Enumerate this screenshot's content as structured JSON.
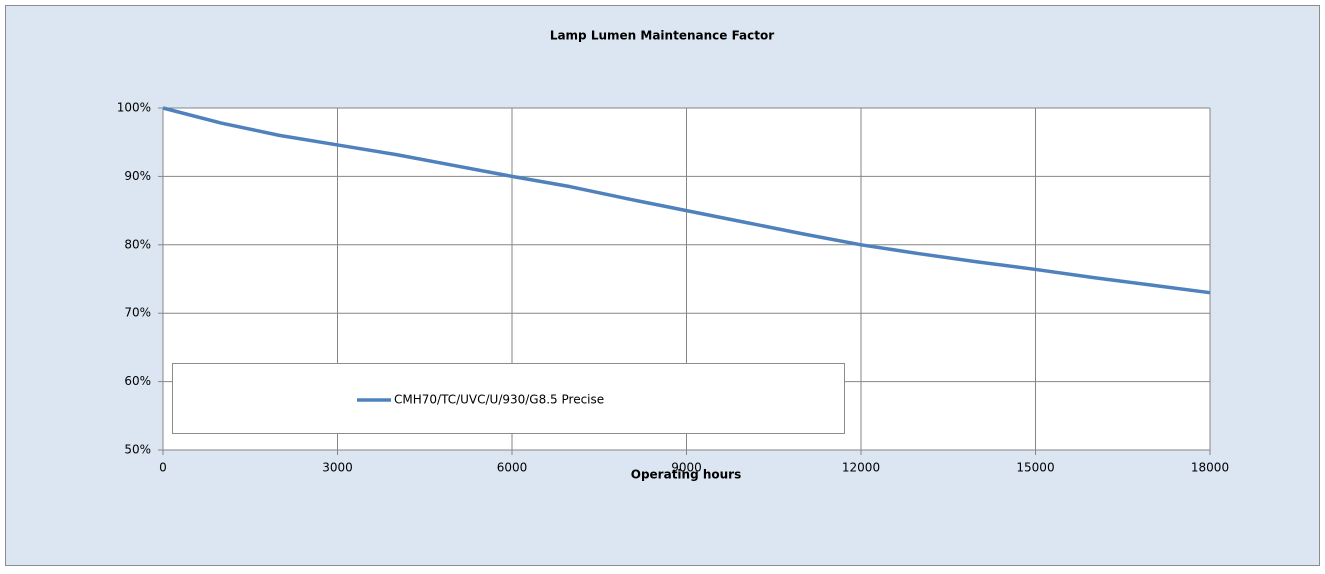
{
  "chart_data": {
    "type": "line",
    "title": "Lamp Lumen Maintenance Factor",
    "x_label": "Operating hours",
    "x": [
      0,
      1000,
      2000,
      3000,
      4000,
      5000,
      6000,
      7000,
      8000,
      9000,
      10000,
      11000,
      12000,
      13000,
      14000,
      15000,
      16000,
      17000,
      18000
    ],
    "series": [
      {
        "name": "CMH70/TC/UVC/U/930/G8.5 Precise",
        "color": "#4f81bd",
        "values": [
          100,
          97.8,
          96,
          94.6,
          93.2,
          91.6,
          90,
          88.5,
          86.7,
          85,
          83.3,
          81.6,
          80,
          78.7,
          77.5,
          76.4,
          75.2,
          74.1,
          73
        ]
      }
    ],
    "xlim": [
      0,
      18000
    ],
    "xticks": [
      0,
      3000,
      6000,
      9000,
      12000,
      15000,
      18000
    ],
    "ylim": [
      50,
      100
    ],
    "yticks": [
      {
        "value": 50,
        "label": "50%"
      },
      {
        "value": 60,
        "label": "60%"
      },
      {
        "value": 70,
        "label": "70%"
      },
      {
        "value": 80,
        "label": "80%"
      },
      {
        "value": 90,
        "label": "90%"
      },
      {
        "value": 100,
        "label": "100%"
      }
    ],
    "grid": true
  }
}
